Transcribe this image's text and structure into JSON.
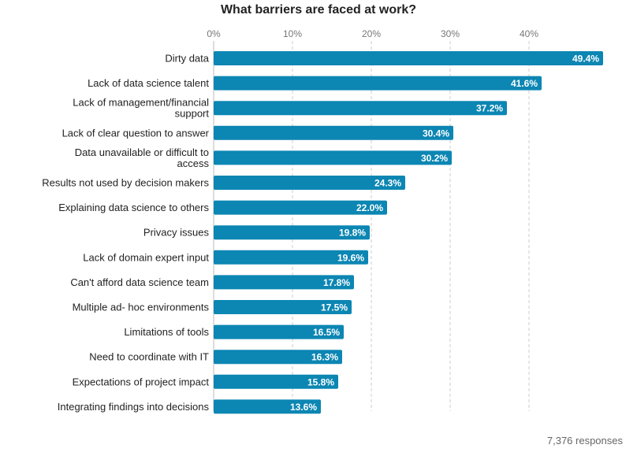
{
  "chart_data": {
    "type": "bar",
    "orientation": "horizontal",
    "title": "What barriers are faced at work?",
    "xlabel": "",
    "ylabel": "",
    "xlim": [
      0,
      50
    ],
    "tick_values": [
      0,
      10,
      20,
      30,
      40
    ],
    "tick_labels": [
      "0%",
      "10%",
      "20%",
      "30%",
      "40%"
    ],
    "grid": "vertical dashed",
    "categories": [
      "Dirty data",
      "Lack of data science talent",
      "Lack of management/financial support",
      "Lack of clear question to answer",
      "Data unavailable or difficult to access",
      "Results not used by decision makers",
      "Explaining data science to others",
      "Privacy issues",
      "Lack of domain expert input",
      "Can't afford data science team",
      "Multiple ad- hoc environments",
      "Limitations of tools",
      "Need to coordinate with IT",
      "Expectations of project impact",
      "Integrating findings into decisions"
    ],
    "category_label_lines": [
      [
        "Dirty data"
      ],
      [
        "Lack of data science talent"
      ],
      [
        "Lack of management/financial",
        "support"
      ],
      [
        "Lack of clear question to answer"
      ],
      [
        "Data unavailable or difficult to",
        "access"
      ],
      [
        "Results not used by decision makers"
      ],
      [
        "Explaining data science to others"
      ],
      [
        "Privacy issues"
      ],
      [
        "Lack of domain expert input"
      ],
      [
        "Can't afford data science team"
      ],
      [
        "Multiple ad- hoc environments"
      ],
      [
        "Limitations of tools"
      ],
      [
        "Need to coordinate with IT"
      ],
      [
        "Expectations of project impact"
      ],
      [
        "Integrating findings into decisions"
      ]
    ],
    "values": [
      49.4,
      41.6,
      37.2,
      30.4,
      30.2,
      24.3,
      22.0,
      19.8,
      19.6,
      17.8,
      17.5,
      16.5,
      16.3,
      15.8,
      13.6
    ],
    "value_labels": [
      "49.4%",
      "41.6%",
      "37.2%",
      "30.4%",
      "30.2%",
      "24.3%",
      "22.0%",
      "19.8%",
      "19.6%",
      "17.8%",
      "17.5%",
      "16.5%",
      "16.3%",
      "15.8%",
      "13.6%"
    ],
    "bar_color": "#0c86b3",
    "value_label_color": "#ffffff",
    "grid_color": "#cccccc",
    "footnote": "7,376 responses"
  }
}
